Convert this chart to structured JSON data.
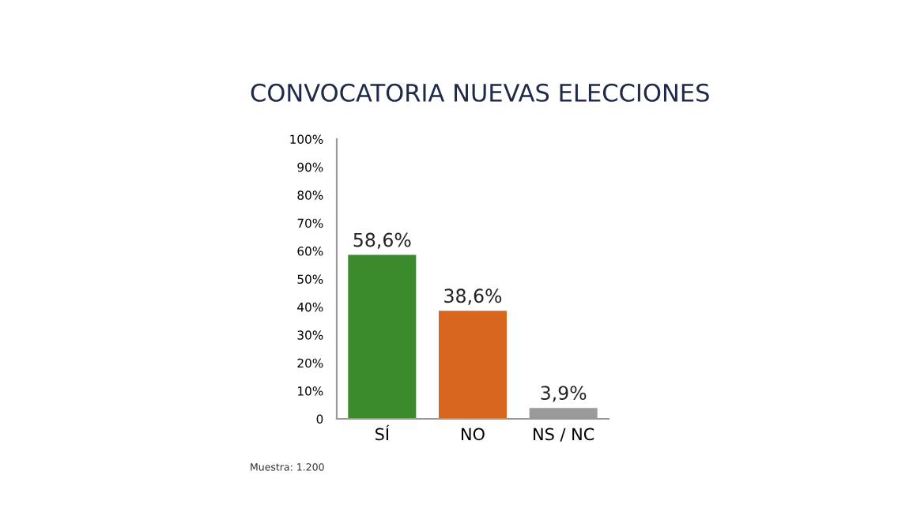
{
  "chart_data": {
    "type": "bar",
    "title": "CONVOCATORIA NUEVAS ELECCIONES",
    "categories": [
      "SÍ",
      "NO",
      "NS / NC"
    ],
    "values": [
      58.6,
      38.6,
      3.9
    ],
    "colors": [
      "#3b8a2c",
      "#d9661f",
      "#9a9a9a"
    ],
    "value_labels": [
      "58,6%",
      "38,6%",
      "3,9%"
    ],
    "ylim": [
      0,
      100
    ],
    "yticks": [
      {
        "value": 0,
        "label": "0"
      },
      {
        "value": 10,
        "label": "10%"
      },
      {
        "value": 20,
        "label": "20%"
      },
      {
        "value": 30,
        "label": "30%"
      },
      {
        "value": 40,
        "label": "40%"
      },
      {
        "value": 50,
        "label": "50%"
      },
      {
        "value": 60,
        "label": "60%"
      },
      {
        "value": 70,
        "label": "70%"
      },
      {
        "value": 80,
        "label": "80%"
      },
      {
        "value": 90,
        "label": "90%"
      },
      {
        "value": 100,
        "label": "100%"
      }
    ],
    "grid": false,
    "annotations": [
      "Muestra: 1.200"
    ]
  }
}
